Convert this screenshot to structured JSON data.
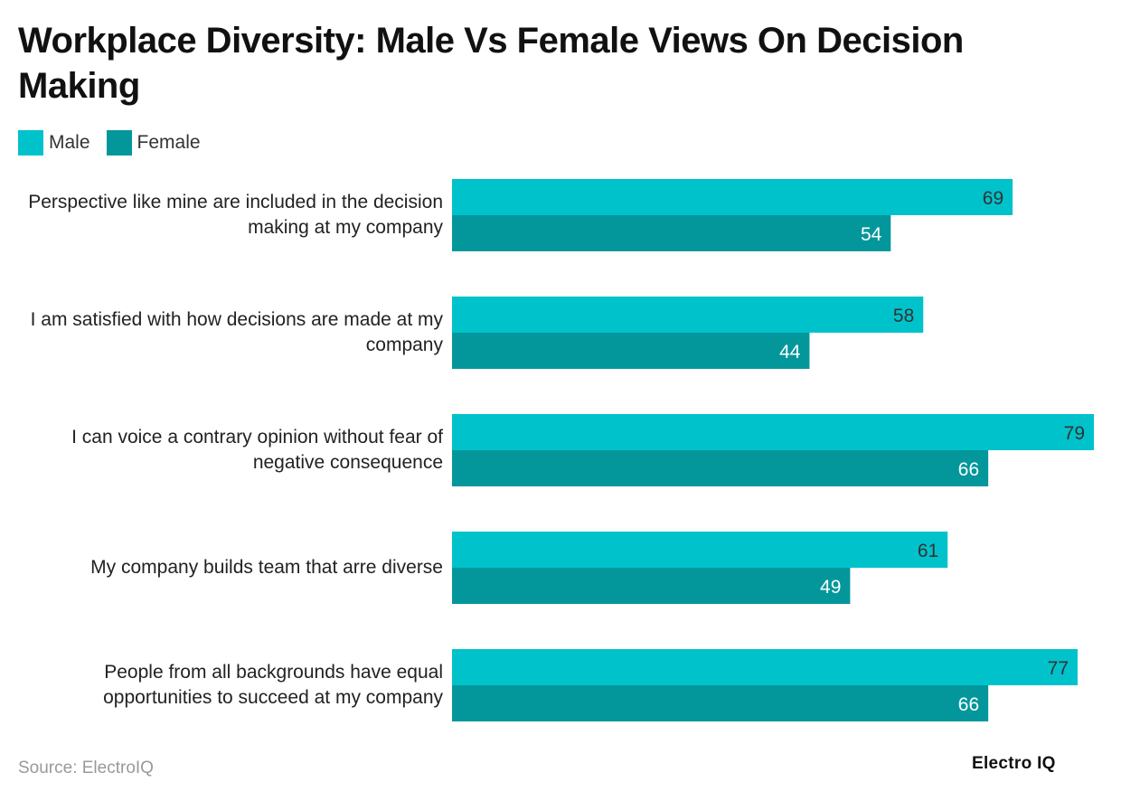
{
  "chart_data": {
    "type": "bar",
    "orientation": "horizontal",
    "title": "Workplace Diversity: Male Vs Female Views On Decision Making",
    "categories": [
      "Perspective like mine are included in the decision making at my company",
      "I am satisfied with how decisions are made at my company",
      "I can voice a contrary opinion without fear of negative consequence",
      "My company builds team that arre diverse",
      "People from all backgrounds have equal opportunities to succeed at my company"
    ],
    "series": [
      {
        "name": "Male",
        "values": [
          69,
          58,
          79,
          61,
          77
        ],
        "color": "#00C2CB"
      },
      {
        "name": "Female",
        "values": [
          54,
          44,
          66,
          49,
          66
        ],
        "color": "#03979C"
      }
    ],
    "xlim": [
      0,
      79
    ],
    "grid": false,
    "legend": "top-left",
    "data_labels": true
  },
  "legend": {
    "male": "Male",
    "female": "Female"
  },
  "footer": {
    "source": "Source: ElectroIQ",
    "logo": "Electro IQ"
  }
}
